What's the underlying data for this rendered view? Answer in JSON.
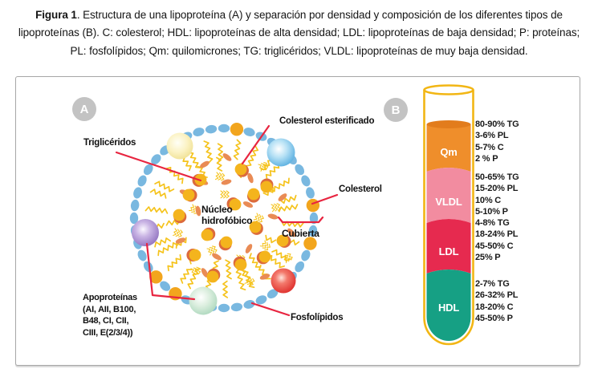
{
  "caption": {
    "label": "Figura 1",
    "rest": ". Estructura de una lipoproteína (A) y separación por densidad y composición de los diferentes tipos de lipoproteínas (B). C: colesterol; HDL: lipoproteínas de alta densidad; LDL: lipoproteínas de baja densidad; P: proteínas; PL: fosfolípidos; Qm: quilomicrones; TG: triglicéridos; VLDL: lipoproteínas de muy baja densidad."
  },
  "panel_a": {
    "label": "A",
    "annotations": {
      "trigliceridos": "Triglicéridos",
      "colesterol_esterificado": "Colesterol esterificado",
      "colesterol": "Colesterol",
      "nucleo": [
        "Núcleo",
        "hidrofóbico"
      ],
      "cubierta": "Cubierta",
      "fosfolipidos": "Fosfolípidos",
      "apoproteinas": [
        "Apoproteínas",
        "(AI, AII, B100,",
        "B48, CI, CII,",
        "CIII, E(2/3/4))"
      ]
    }
  },
  "panel_b": {
    "label": "B",
    "tube_color": "#F2B614",
    "bands": [
      {
        "label": "Qm",
        "color": "#EF8E2B",
        "top_color": "#E27C1C",
        "composition": [
          "80-90% TG",
          "3-6% PL",
          "5-7% C",
          "2 % P"
        ]
      },
      {
        "label": "VLDL",
        "color": "#F28CA0",
        "composition": [
          "50-65% TG",
          "15-20% PL",
          "10% C",
          "5-10% P"
        ]
      },
      {
        "label": "LDL",
        "color": "#E62A4F",
        "composition": [
          "4-8% TG",
          "18-24% PL",
          "45-50% C",
          "25% P"
        ]
      },
      {
        "label": "HDL",
        "color": "#16A084",
        "composition": [
          "2-7% TG",
          "26-32% PL",
          "18-20% C",
          "45-50% P"
        ]
      }
    ]
  },
  "colors": {
    "pointer_line": "#E82540",
    "phospholipid_head": "#79B8E0",
    "fatty_acid_tail": "#F5C31C",
    "cholesterol_dot": "#F2A51D",
    "ester_crescent": "#DC6A3C",
    "badge_gray": "#C3C3C3"
  }
}
